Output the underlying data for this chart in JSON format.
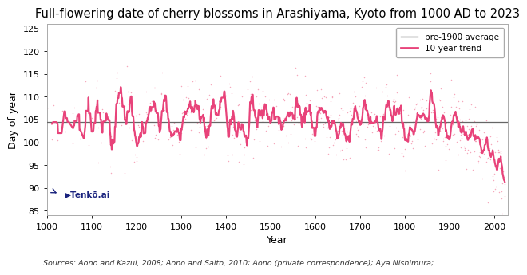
{
  "title": "Full-flowering date of cherry blossoms in Arashiyama, Kyoto from 1000 AD to 2023",
  "xlabel": "Year",
  "ylabel": "Day of year",
  "pre1900_avg": 104.5,
  "xlim": [
    1000,
    2030
  ],
  "ylim": [
    84,
    126
  ],
  "yticks": [
    85,
    90,
    95,
    100,
    105,
    110,
    115,
    120,
    125
  ],
  "xticks": [
    1000,
    1100,
    1200,
    1300,
    1400,
    1500,
    1600,
    1700,
    1800,
    1900,
    2000
  ],
  "scatter_color": "#f4a0b5",
  "line_color": "#e8437a",
  "avg_line_color": "#666666",
  "title_fontsize": 10.5,
  "axis_label_fontsize": 9,
  "tick_fontsize": 8,
  "source_text": "Sources: Aono and Kazui, 2008; Aono and Saito, 2010; Aono (private correspondence); Aya Nishimura;",
  "legend_labels": [
    "pre-1900 average",
    "10-year trend"
  ],
  "watermark": "Tenkō.ai"
}
